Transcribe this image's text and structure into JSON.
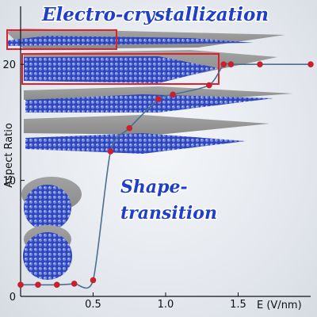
{
  "chart_data": {
    "type": "scatter",
    "title": "Electro-crystallization",
    "annotations": [
      "Shape-",
      "transition"
    ],
    "xlabel": "E (V/nm)",
    "ylabel": "Aspect Ratio",
    "xlim": [
      0,
      2.0
    ],
    "ylim": [
      0,
      25
    ],
    "x_ticks": [
      0.5,
      1.0,
      1.5
    ],
    "x_tick_labels": [
      "0.5",
      "1.0",
      "1.5"
    ],
    "y_ticks": [
      0,
      10,
      20
    ],
    "y_tick_labels": [
      "0",
      "10",
      "20"
    ],
    "grid": false,
    "legend": "none",
    "series": [
      {
        "x": [
          0.0,
          0.12,
          0.25,
          0.37,
          0.5,
          0.62,
          0.75,
          0.95,
          1.05,
          1.3,
          1.4,
          1.45,
          1.65,
          2.0
        ],
        "y": [
          1.0,
          1.0,
          1.0,
          1.1,
          1.4,
          12.5,
          14.5,
          17.0,
          17.4,
          18.2,
          20.0,
          20.0,
          20.0,
          20.0
        ]
      }
    ],
    "colors": {
      "marker": "#c8202c",
      "line": "#4a6f92",
      "title": "#1f3fc8",
      "highlight_box": "#e0202c",
      "crystal_shadow": "#9c9c9c",
      "crystal_atoms": "#3a4fc4"
    }
  }
}
